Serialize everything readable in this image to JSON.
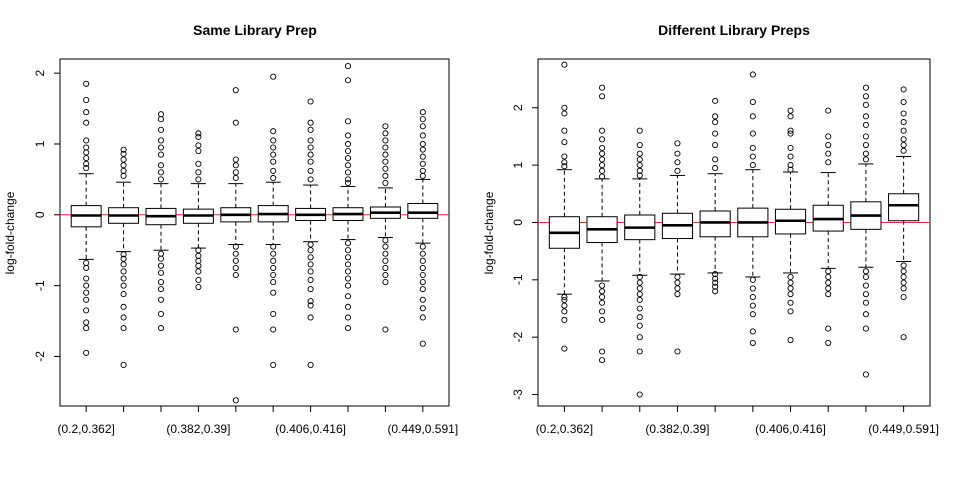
{
  "chart_data": [
    {
      "type": "boxplot",
      "title": "Same Library Prep",
      "ylabel": "log-fold-change",
      "xlabel": "",
      "ylim": [
        -2.7,
        2.2
      ],
      "yticks": [
        -2,
        -1,
        0,
        1,
        2
      ],
      "reference_line": {
        "y": 0,
        "color": "#e03030"
      },
      "categories": [
        "(0.2,0.362]",
        "",
        "",
        "(0.382,0.39]",
        "",
        "",
        "(0.406,0.416]",
        "",
        "",
        "(0.449,0.591]"
      ],
      "xtick_labels": [
        "(0.2,0.362]",
        "(0.382,0.39]",
        "(0.406,0.416]",
        "(0.449,0.591]"
      ],
      "boxes": [
        {
          "median": -0.01,
          "q1": -0.17,
          "q3": 0.13,
          "whisker_low": -0.63,
          "whisker_high": 0.58,
          "outliers": [
            1.85,
            1.62,
            1.45,
            1.3,
            1.05,
            0.95,
            0.88,
            0.8,
            0.72,
            0.66,
            -0.68,
            -0.75,
            -0.9,
            -1.0,
            -1.1,
            -1.2,
            -1.35,
            -1.52,
            -1.6,
            -1.95
          ]
        },
        {
          "median": -0.01,
          "q1": -0.12,
          "q3": 0.1,
          "whisker_low": -0.52,
          "whisker_high": 0.46,
          "outliers": [
            0.92,
            0.86,
            0.78,
            0.7,
            0.62,
            0.55,
            -0.56,
            -0.62,
            -0.7,
            -0.8,
            -0.9,
            -1.0,
            -1.12,
            -1.3,
            -1.45,
            -1.6,
            -2.12
          ]
        },
        {
          "median": -0.02,
          "q1": -0.14,
          "q3": 0.09,
          "whisker_low": -0.5,
          "whisker_high": 0.44,
          "outliers": [
            1.42,
            1.35,
            1.2,
            1.05,
            0.95,
            0.85,
            0.7,
            0.6,
            0.5,
            -0.55,
            -0.62,
            -0.72,
            -0.82,
            -0.95,
            -1.05,
            -1.2,
            -1.4,
            -1.6
          ]
        },
        {
          "median": -0.01,
          "q1": -0.12,
          "q3": 0.08,
          "whisker_low": -0.47,
          "whisker_high": 0.44,
          "outliers": [
            1.15,
            1.1,
            0.98,
            0.9,
            0.72,
            0.6,
            0.5,
            -0.5,
            -0.58,
            -0.65,
            -0.72,
            -0.8,
            -0.92,
            -1.02
          ]
        },
        {
          "median": 0.0,
          "q1": -0.1,
          "q3": 0.1,
          "whisker_low": -0.42,
          "whisker_high": 0.44,
          "outliers": [
            1.76,
            1.3,
            0.78,
            0.7,
            0.6,
            0.52,
            -0.45,
            -0.55,
            -0.65,
            -0.75,
            -0.85,
            -1.62,
            -2.62
          ]
        },
        {
          "median": 0.01,
          "q1": -0.1,
          "q3": 0.13,
          "whisker_low": -0.42,
          "whisker_high": 0.46,
          "outliers": [
            1.95,
            1.18,
            1.05,
            0.95,
            0.85,
            0.75,
            0.62,
            0.52,
            -0.45,
            -0.55,
            -0.65,
            -0.75,
            -0.85,
            -0.95,
            -1.1,
            -1.4,
            -1.62,
            -2.12
          ]
        },
        {
          "median": 0.0,
          "q1": -0.08,
          "q3": 0.09,
          "whisker_low": -0.38,
          "whisker_high": 0.42,
          "outliers": [
            1.6,
            1.3,
            1.2,
            1.05,
            0.95,
            0.85,
            0.75,
            0.62,
            0.5,
            -0.42,
            -0.5,
            -0.6,
            -0.7,
            -0.8,
            -0.92,
            -1.05,
            -1.22,
            -1.28,
            -1.45,
            -2.12
          ]
        },
        {
          "median": 0.01,
          "q1": -0.08,
          "q3": 0.1,
          "whisker_low": -0.35,
          "whisker_high": 0.4,
          "outliers": [
            2.1,
            1.9,
            1.32,
            1.12,
            1.0,
            0.9,
            0.8,
            0.7,
            0.6,
            0.5,
            0.45,
            -0.4,
            -0.5,
            -0.6,
            -0.7,
            -0.8,
            -0.9,
            -1.0,
            -1.15,
            -1.3,
            -1.45,
            -1.6
          ]
        },
        {
          "median": 0.03,
          "q1": -0.05,
          "q3": 0.11,
          "whisker_low": -0.32,
          "whisker_high": 0.38,
          "outliers": [
            1.25,
            1.15,
            1.05,
            0.95,
            0.85,
            0.75,
            0.65,
            0.55,
            0.45,
            -0.36,
            -0.45,
            -0.55,
            -0.65,
            -0.75,
            -0.85,
            -0.95,
            -1.62
          ]
        },
        {
          "median": 0.03,
          "q1": -0.05,
          "q3": 0.16,
          "whisker_low": -0.4,
          "whisker_high": 0.5,
          "outliers": [
            1.45,
            1.35,
            1.25,
            1.12,
            1.0,
            0.92,
            0.82,
            0.72,
            0.62,
            0.55,
            -0.45,
            -0.55,
            -0.65,
            -0.75,
            -0.85,
            -0.95,
            -1.05,
            -1.2,
            -1.32,
            -1.45,
            -1.82
          ]
        }
      ]
    },
    {
      "type": "boxplot",
      "title": "Different Library Preps",
      "ylabel": "log-fold-change",
      "xlabel": "",
      "ylim": [
        -3.2,
        2.85
      ],
      "yticks": [
        -3,
        -2,
        -1,
        0,
        1,
        2
      ],
      "reference_line": {
        "y": 0,
        "color": "#e03030"
      },
      "categories": [
        "(0.2,0.362]",
        "",
        "",
        "(0.382,0.39]",
        "",
        "",
        "(0.406,0.416]",
        "",
        "",
        "(0.449,0.591]"
      ],
      "xtick_labels": [
        "(0.2,0.362]",
        "(0.382,0.39]",
        "(0.406,0.416]",
        "(0.449,0.591]"
      ],
      "boxes": [
        {
          "median": -0.18,
          "q1": -0.45,
          "q3": 0.1,
          "whisker_low": -1.25,
          "whisker_high": 0.92,
          "outliers": [
            2.75,
            2.0,
            1.9,
            1.6,
            1.4,
            1.15,
            1.05,
            0.98,
            -1.3,
            -1.35,
            -1.45,
            -1.55,
            -1.7,
            -2.2
          ]
        },
        {
          "median": -0.12,
          "q1": -0.35,
          "q3": 0.1,
          "whisker_low": -1.02,
          "whisker_high": 0.76,
          "outliers": [
            2.35,
            2.2,
            1.6,
            1.45,
            1.3,
            1.2,
            1.1,
            1.0,
            0.9,
            0.8,
            -1.1,
            -1.2,
            -1.3,
            -1.4,
            -1.55,
            -1.7,
            -2.25,
            -2.4
          ]
        },
        {
          "median": -0.09,
          "q1": -0.3,
          "q3": 0.13,
          "whisker_low": -0.92,
          "whisker_high": 0.76,
          "outliers": [
            1.6,
            1.35,
            1.2,
            1.1,
            1.0,
            0.9,
            0.82,
            -0.95,
            -1.05,
            -1.15,
            -1.25,
            -1.35,
            -1.5,
            -1.65,
            -1.8,
            -2.0,
            -2.25,
            -3.0
          ]
        },
        {
          "median": -0.05,
          "q1": -0.28,
          "q3": 0.16,
          "whisker_low": -0.9,
          "whisker_high": 0.82,
          "outliers": [
            1.38,
            1.2,
            1.05,
            0.9,
            -0.95,
            -1.05,
            -1.15,
            -1.25,
            -2.25
          ]
        },
        {
          "median": 0.0,
          "q1": -0.25,
          "q3": 0.2,
          "whisker_low": -0.88,
          "whisker_high": 0.85,
          "outliers": [
            2.12,
            1.85,
            1.75,
            1.55,
            1.35,
            1.1,
            0.95,
            -0.9,
            -0.98,
            -1.05,
            -1.12,
            -1.2
          ]
        },
        {
          "median": 0.0,
          "q1": -0.25,
          "q3": 0.25,
          "whisker_low": -0.95,
          "whisker_high": 0.92,
          "outliers": [
            2.58,
            2.1,
            1.85,
            1.55,
            1.3,
            1.15,
            1.0,
            -1.0,
            -1.15,
            -1.3,
            -1.45,
            -1.6,
            -1.9,
            -2.1
          ]
        },
        {
          "median": 0.03,
          "q1": -0.2,
          "q3": 0.23,
          "whisker_low": -0.88,
          "whisker_high": 0.88,
          "outliers": [
            1.95,
            1.85,
            1.6,
            1.55,
            1.3,
            1.15,
            1.0,
            0.92,
            -0.95,
            -1.05,
            -1.15,
            -1.25,
            -1.4,
            -1.55,
            -2.05
          ]
        },
        {
          "median": 0.06,
          "q1": -0.15,
          "q3": 0.3,
          "whisker_low": -0.8,
          "whisker_high": 0.87,
          "outliers": [
            1.95,
            1.5,
            1.35,
            1.2,
            1.05,
            -0.85,
            -0.95,
            -1.05,
            -1.15,
            -1.25,
            -1.85,
            -2.1
          ]
        },
        {
          "median": 0.12,
          "q1": -0.12,
          "q3": 0.36,
          "whisker_low": -0.78,
          "whisker_high": 1.02,
          "outliers": [
            2.35,
            2.2,
            2.05,
            1.85,
            1.7,
            1.5,
            1.35,
            1.2,
            1.1,
            -0.85,
            -0.95,
            -1.1,
            -1.25,
            -1.4,
            -1.6,
            -1.85,
            -2.65
          ]
        },
        {
          "median": 0.3,
          "q1": 0.03,
          "q3": 0.5,
          "whisker_low": -0.68,
          "whisker_high": 1.15,
          "outliers": [
            2.32,
            2.1,
            1.9,
            1.75,
            1.6,
            1.45,
            1.35,
            1.25,
            -0.75,
            -0.85,
            -0.95,
            -1.05,
            -1.15,
            -1.3,
            -2.0
          ]
        }
      ]
    }
  ]
}
